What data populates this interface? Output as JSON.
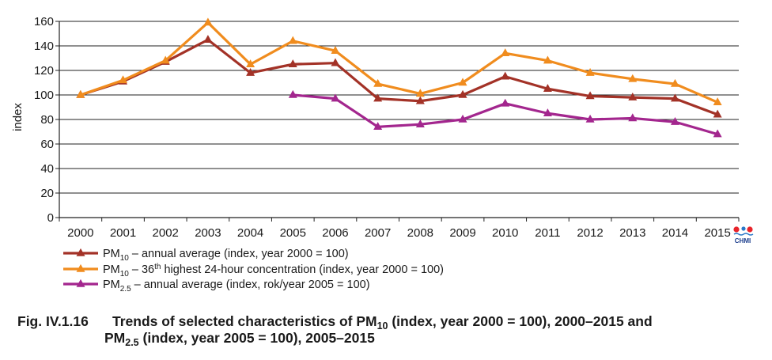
{
  "chart_data": {
    "type": "line",
    "ylabel": "index",
    "ylim": [
      0,
      160
    ],
    "yticks": [
      "0",
      "20",
      "40",
      "60",
      "80",
      "100",
      "120",
      "140",
      "160"
    ],
    "categories": [
      "2000",
      "2001",
      "2002",
      "2003",
      "2004",
      "2005",
      "2006",
      "2007",
      "2008",
      "2009",
      "2010",
      "2011",
      "2012",
      "2013",
      "2014",
      "2015"
    ],
    "grid": true,
    "legend_position": "bottom-left",
    "series": [
      {
        "key": "pm10_annual",
        "color": "#a33227",
        "legend": {
          "main": "PM",
          "sub": "10",
          "rest": " – annual average (index, year 2000 = 100)"
        },
        "values": [
          100,
          111,
          127,
          145,
          118,
          125,
          126,
          97,
          95,
          100,
          115,
          105,
          99,
          98,
          97,
          84
        ]
      },
      {
        "key": "pm10_36th",
        "color": "#f08c1e",
        "legend": {
          "main": "PM",
          "sub": "10",
          "mid": " – 36",
          "sup": "th",
          "rest": " highest 24-hour concentration (index, year 2000 = 100)"
        },
        "values": [
          100,
          112,
          128,
          159,
          125,
          144,
          136,
          109,
          101,
          110,
          134,
          128,
          118,
          113,
          109,
          94
        ]
      },
      {
        "key": "pm25_annual",
        "color": "#a3268e",
        "legend": {
          "main": "PM",
          "sub": "2.5",
          "rest": " – annual average (index, rok/year 2005 = 100)"
        },
        "values": [
          null,
          null,
          null,
          null,
          null,
          100,
          97,
          74,
          76,
          80,
          93,
          85,
          80,
          81,
          78,
          68
        ]
      }
    ]
  },
  "logo": {
    "text": "CHMI",
    "colors": [
      "#e8242b",
      "#2a78c8"
    ]
  },
  "caption": {
    "number": "Fig. IV.1.16",
    "part1": "Trends of selected characteristics of PM",
    "sub1": "10",
    "part2": " (index, year 2000 = 100), 2000–2015 and",
    "line2_main": "PM",
    "sub2": "2.5",
    "line2_rest": " (index, year 2005 = 100), 2005–2015"
  }
}
